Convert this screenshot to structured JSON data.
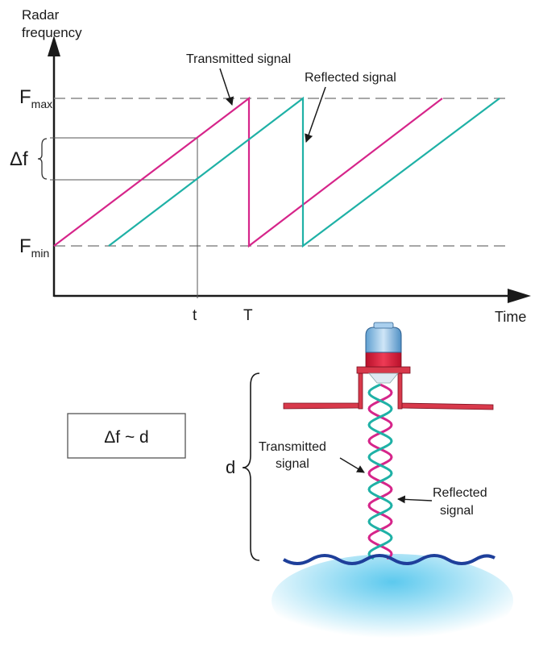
{
  "chart": {
    "y_axis_label_line1": "Radar",
    "y_axis_label_line2": "frequency",
    "x_axis_label": "Time",
    "fmax_main": "F",
    "fmax_sub": "max",
    "fmin_main": "F",
    "fmin_sub": "min",
    "delta_f": "Δf",
    "tick_t": "t",
    "tick_T": "T",
    "transmitted_label": "Transmitted signal",
    "reflected_label": "Reflected signal"
  },
  "sensor": {
    "formula": "Δf ~ d",
    "distance_label": "d",
    "transmitted_line1": "Transmitted",
    "transmitted_line2": "signal",
    "reflected_line1": "Reflected",
    "reflected_line2": "signal"
  },
  "colors": {
    "transmitted": "#d6258a",
    "reflected": "#1fb1a6",
    "axis": "#1a1a1a",
    "dashed": "#8a8a8a",
    "liquid_surface": "#1e3f9a",
    "liquid": "#5cc9ee",
    "flange": "#d8394b",
    "cap": "#8fc2e8"
  }
}
